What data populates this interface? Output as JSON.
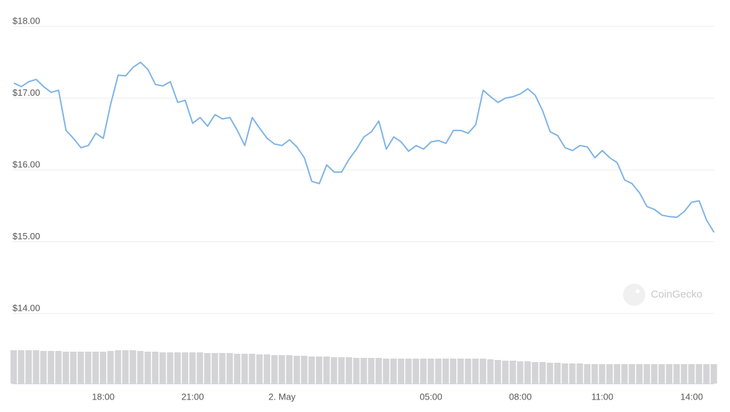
{
  "chart_data": {
    "type": "line",
    "categories": [
      null,
      null,
      null,
      null,
      null,
      null,
      null,
      null,
      null,
      null,
      null,
      null,
      "18:00",
      null,
      null,
      null,
      null,
      null,
      null,
      null,
      null,
      null,
      null,
      null,
      "21:00",
      null,
      null,
      null,
      null,
      null,
      null,
      null,
      null,
      null,
      null,
      null,
      "2. May",
      null,
      null,
      null,
      null,
      null,
      null,
      null,
      null,
      null,
      null,
      null,
      null,
      null,
      null,
      null,
      null,
      null,
      null,
      null,
      "05:00",
      null,
      null,
      null,
      null,
      null,
      null,
      null,
      null,
      null,
      null,
      null,
      "08:00",
      null,
      null,
      null,
      null,
      null,
      null,
      null,
      null,
      null,
      null,
      "11:00",
      null,
      null,
      null,
      null,
      null,
      null,
      null,
      null,
      null,
      null,
      null,
      "14:00",
      null,
      null,
      null
    ],
    "values": [
      17.21,
      17.16,
      17.23,
      17.26,
      17.16,
      17.08,
      17.11,
      16.55,
      16.44,
      16.31,
      16.34,
      16.51,
      16.44,
      16.92,
      17.32,
      17.31,
      17.43,
      17.5,
      17.4,
      17.19,
      17.17,
      17.23,
      16.94,
      16.97,
      16.65,
      16.73,
      16.61,
      16.77,
      16.71,
      16.73,
      16.55,
      16.34,
      16.73,
      16.58,
      16.44,
      16.36,
      16.34,
      16.42,
      16.32,
      16.17,
      15.84,
      15.81,
      16.07,
      15.97,
      15.97,
      16.15,
      16.29,
      16.46,
      16.53,
      16.68,
      16.29,
      16.46,
      16.39,
      16.26,
      16.34,
      16.29,
      16.39,
      16.41,
      16.37,
      16.55,
      16.55,
      16.51,
      16.63,
      17.11,
      17.02,
      16.94,
      17.0,
      17.02,
      17.06,
      17.13,
      17.04,
      16.82,
      16.53,
      16.48,
      16.31,
      16.27,
      16.34,
      16.32,
      16.17,
      16.27,
      16.17,
      16.1,
      15.86,
      15.81,
      15.68,
      15.49,
      15.45,
      15.37,
      15.35,
      15.34,
      15.42,
      15.55,
      15.57,
      15.3,
      15.13
    ],
    "color": "#7eb3e6",
    "volume": [
      48,
      48,
      48,
      48,
      47,
      47,
      47,
      46,
      46,
      46,
      46,
      46,
      46,
      47,
      48,
      48,
      48,
      47,
      46,
      46,
      45,
      45,
      45,
      45,
      45,
      45,
      44,
      44,
      44,
      44,
      43,
      43,
      43,
      42,
      42,
      41,
      41,
      41,
      40,
      40,
      39,
      39,
      39,
      38,
      38,
      38,
      37,
      37,
      37,
      37,
      36,
      36,
      36,
      36,
      36,
      36,
      36,
      36,
      36,
      36,
      36,
      36,
      36,
      36,
      35,
      34,
      33,
      33,
      32,
      32,
      31,
      31,
      30,
      30,
      29,
      29,
      29,
      28,
      28,
      28,
      28,
      28,
      28,
      28,
      28,
      28,
      28,
      28,
      28,
      28,
      28,
      28,
      28,
      28,
      28
    ],
    "volume_color": "#d4d4d6",
    "ylim": [
      13.6,
      18.2
    ],
    "yticks": [
      {
        "value": 14,
        "label": "$14.00"
      },
      {
        "value": 15,
        "label": "$15.00"
      },
      {
        "value": 16,
        "label": "$16.00"
      },
      {
        "value": 17,
        "label": "$17.00"
      },
      {
        "value": 18,
        "label": "$18.00"
      }
    ],
    "grid": true,
    "watermark": "CoinGecko"
  }
}
